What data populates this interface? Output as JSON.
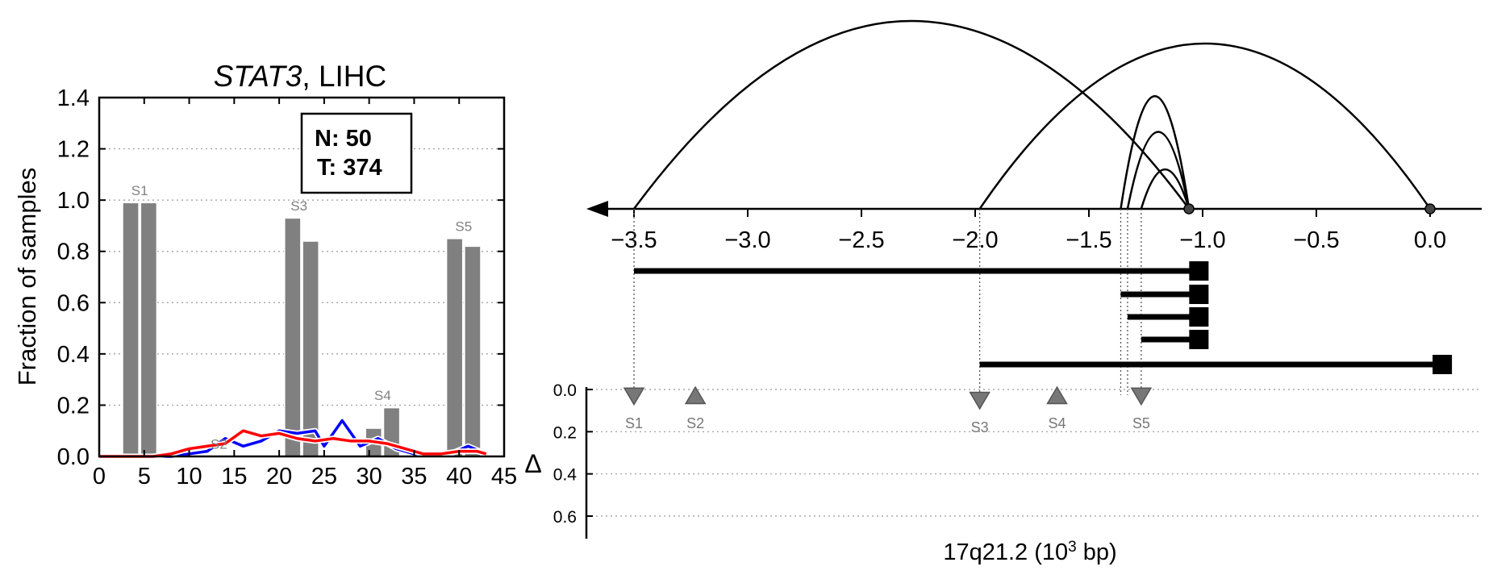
{
  "chart_data": [
    {
      "type": "bar",
      "title_gene": "STAT3",
      "title_rest": ", LIHC",
      "ylabel": "Fraction of samples",
      "xlim": [
        0,
        45
      ],
      "ylim": [
        0,
        1.4
      ],
      "xticks": [
        "0",
        "5",
        "10",
        "15",
        "20",
        "25",
        "30",
        "35",
        "40",
        "45"
      ],
      "yticks": [
        "0.0",
        "0.2",
        "0.4",
        "0.6",
        "0.8",
        "1.0",
        "1.2",
        "1.4"
      ],
      "grid": "horizontal-dotted",
      "legend_box": {
        "line1": "N: 50",
        "line2": "T: 374"
      },
      "bars": [
        {
          "x": 3.5,
          "value": 0.99,
          "color": "#808080"
        },
        {
          "x": 5.5,
          "value": 0.99,
          "color": "#808080"
        },
        {
          "x": 21.5,
          "value": 0.93,
          "color": "#808080"
        },
        {
          "x": 23.5,
          "value": 0.84,
          "color": "#808080"
        },
        {
          "x": 30.5,
          "value": 0.11,
          "color": "#808080"
        },
        {
          "x": 32.5,
          "value": 0.19,
          "color": "#808080"
        },
        {
          "x": 39.5,
          "value": 0.85,
          "color": "#808080"
        },
        {
          "x": 41.5,
          "value": 0.82,
          "color": "#808080"
        }
      ],
      "bar_labels": [
        {
          "text": "S1",
          "x": 4.5,
          "y": 1.02
        },
        {
          "text": "S2",
          "x": 13.3,
          "y": 0.03
        },
        {
          "text": "S3",
          "x": 22.2,
          "y": 0.96
        },
        {
          "text": "S4",
          "x": 31.5,
          "y": 0.22
        },
        {
          "text": "S5",
          "x": 40.5,
          "y": 0.88
        }
      ],
      "series": [
        {
          "color": "#0000ff",
          "x": [
            0,
            2,
            4,
            6,
            8,
            10,
            12,
            14,
            16,
            18,
            20,
            22,
            24,
            25,
            27,
            29,
            31,
            33,
            35,
            37,
            39,
            41,
            43
          ],
          "values": [
            0,
            0,
            0,
            0,
            0,
            0.01,
            0.02,
            0.07,
            0.04,
            0.06,
            0.1,
            0.09,
            0.1,
            0.04,
            0.14,
            0.04,
            0.07,
            0.03,
            0.01,
            0.01,
            0.01,
            0.04,
            0.01
          ]
        },
        {
          "color": "#ff0000",
          "x": [
            0,
            2,
            4,
            6,
            8,
            10,
            12,
            14,
            16,
            18,
            20,
            22,
            24,
            26,
            28,
            30,
            32,
            34,
            36,
            38,
            40,
            42,
            43
          ],
          "values": [
            0,
            0,
            0,
            0,
            0.01,
            0.03,
            0.04,
            0.05,
            0.1,
            0.08,
            0.09,
            0.07,
            0.06,
            0.07,
            0.06,
            0.06,
            0.05,
            0.03,
            0.01,
            0.01,
            0.02,
            0.02,
            0.01
          ]
        }
      ]
    },
    {
      "type": "genomic-arc",
      "xlabel_main": "17q21.2 (10",
      "xlabel_sup": "3",
      "xlabel_tail": " bp)",
      "xlim": [
        -3.7,
        0.2
      ],
      "xticks": [
        -3.5,
        -3.0,
        -2.5,
        -2.0,
        -1.5,
        -1.0,
        -0.5,
        0.0
      ],
      "xtick_labels": [
        "−3.5",
        "−3.0",
        "−2.5",
        "−2.0",
        "−1.5",
        "−1.0",
        "−0.5",
        "0.0"
      ],
      "axis_direction": "left-arrow",
      "anchors": [
        -1.06,
        0.0
      ],
      "arcs": [
        {
          "from": -3.5,
          "to": -1.06,
          "height": 1.0
        },
        {
          "from": -1.98,
          "to": 0.0,
          "height": 0.88
        },
        {
          "from": -1.36,
          "to": -1.06,
          "height": 0.6
        },
        {
          "from": -1.33,
          "to": -1.06,
          "height": 0.41
        },
        {
          "from": -1.27,
          "to": -1.06,
          "height": 0.21
        }
      ],
      "segments": [
        {
          "from": -3.5,
          "to": -1.02
        },
        {
          "from": -1.36,
          "to": -1.02
        },
        {
          "from": -1.33,
          "to": -1.02
        },
        {
          "from": -1.27,
          "to": -1.02
        },
        {
          "from": -1.98,
          "to": 0.05
        }
      ],
      "delta": {
        "ylabel": "Δ",
        "ylim": [
          0,
          0.7
        ],
        "yticks": [
          "0.0",
          "0.2",
          "0.4",
          "0.6"
        ],
        "markers": [
          {
            "label": "S1",
            "x": -3.5,
            "y": 0.03,
            "shape": "triangle-down"
          },
          {
            "label": "S2",
            "x": -3.23,
            "y": 0.03,
            "shape": "triangle-up"
          },
          {
            "label": "S3",
            "x": -1.98,
            "y": 0.05,
            "shape": "triangle-down"
          },
          {
            "label": "S4",
            "x": -1.64,
            "y": 0.03,
            "shape": "triangle-up"
          },
          {
            "label": "S5",
            "x": -1.27,
            "y": 0.03,
            "shape": "triangle-down"
          }
        ],
        "guide_lines_from": [
          -3.5,
          -1.98,
          -1.36,
          -1.33,
          -1.27
        ]
      }
    }
  ]
}
